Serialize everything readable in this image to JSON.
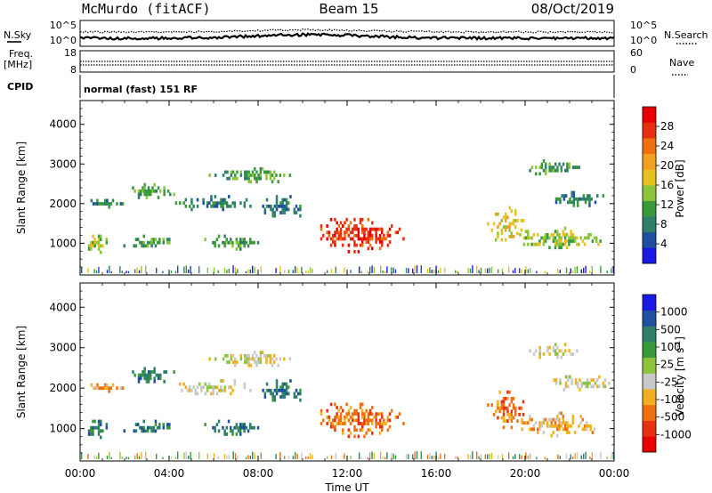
{
  "header": {
    "station": "McMurdo (fitACF)",
    "beam": "Beam 15",
    "date": "08/Oct/2019"
  },
  "sky_panel": {
    "left_label": "N.Sky",
    "right_label": "N.Search",
    "left_ticks": [
      "10^5",
      "10^0"
    ],
    "right_ticks": [
      "10^5",
      "10^0"
    ]
  },
  "freq_panel": {
    "left_label_1": "Freq.",
    "left_label_2": "[MHz]",
    "left_ticks": [
      "18",
      "8"
    ],
    "right_label": "Nave",
    "right_ticks": [
      "60",
      "0"
    ]
  },
  "cpid": {
    "label": "CPID",
    "text": "normal (fast) 151 RF"
  },
  "chart_data": [
    {
      "type": "heatmap",
      "panel": "power",
      "ylabel": "Slant Range [km]",
      "yticks": [
        1000,
        2000,
        3000,
        4000
      ],
      "ylim": [
        200,
        4600
      ],
      "xlim": [
        0,
        24
      ],
      "colorbar": {
        "label": "Power [dB]",
        "ticks": [
          "4",
          "8",
          "12",
          "16",
          "20",
          "24",
          "28"
        ],
        "colors": [
          "#1a1ae6",
          "#1e4fa0",
          "#2f7f6a",
          "#3a9a3a",
          "#8cc43c",
          "#e8c020",
          "#f2a020",
          "#f07010",
          "#e83010",
          "#e80000"
        ]
      },
      "echo_regions": [
        {
          "t0": 0.0,
          "t1": 1.4,
          "r0": 700,
          "r1": 1300,
          "level": 4
        },
        {
          "t0": 0.2,
          "t1": 2.0,
          "r0": 1900,
          "r1": 2200,
          "level": 2
        },
        {
          "t0": 1.5,
          "t1": 4.6,
          "r0": 850,
          "r1": 1300,
          "level": 3
        },
        {
          "t0": 1.8,
          "t1": 4.7,
          "r0": 2100,
          "r1": 2600,
          "level": 3
        },
        {
          "t0": 4.0,
          "t1": 8.0,
          "r0": 1800,
          "r1": 2300,
          "level": 2
        },
        {
          "t0": 5.4,
          "t1": 8.2,
          "r0": 800,
          "r1": 1300,
          "level": 3
        },
        {
          "t0": 5.6,
          "t1": 9.8,
          "r0": 2500,
          "r1": 3000,
          "level": 3
        },
        {
          "t0": 8.0,
          "t1": 10.2,
          "r0": 1600,
          "r1": 2300,
          "level": 2
        },
        {
          "t0": 10.0,
          "t1": 14.8,
          "r0": 700,
          "r1": 1800,
          "level": 8
        },
        {
          "t0": 18.2,
          "t1": 20.0,
          "r0": 900,
          "r1": 2100,
          "level": 5
        },
        {
          "t0": 19.2,
          "t1": 23.6,
          "r0": 800,
          "r1": 1500,
          "level": 4
        },
        {
          "t0": 20.0,
          "t1": 22.6,
          "r0": 2700,
          "r1": 3200,
          "level": 3
        },
        {
          "t0": 21.0,
          "t1": 24.0,
          "r0": 1900,
          "r1": 2400,
          "level": 2
        }
      ]
    },
    {
      "type": "heatmap",
      "panel": "velocity",
      "xlabel": "Time UT",
      "ylabel": "Slant Range [km]",
      "yticks": [
        1000,
        2000,
        3000,
        4000
      ],
      "ylim": [
        200,
        4600
      ],
      "xlim": [
        0,
        24
      ],
      "xticks": [
        "00:00",
        "04:00",
        "08:00",
        "12:00",
        "16:00",
        "20:00",
        "00:00"
      ],
      "colorbar": {
        "label": "Velocity [m s",
        "label_exp": "-1",
        "label_close": "]",
        "ticks": [
          "1000",
          "500",
          "100",
          "25",
          "-25",
          "-100",
          "-500",
          "-1000"
        ],
        "colors": [
          "#1a1ae6",
          "#1e4fa0",
          "#2f7f6a",
          "#3a9a3a",
          "#8cc43c",
          "#c8c8c8",
          "#f2b020",
          "#f07010",
          "#e83010",
          "#e80000"
        ]
      },
      "echo_regions": [
        {
          "t0": 0.0,
          "t1": 1.4,
          "r0": 700,
          "r1": 1300,
          "level": 2
        },
        {
          "t0": 0.2,
          "t1": 2.0,
          "r0": 1900,
          "r1": 2200,
          "level": 6
        },
        {
          "t0": 1.5,
          "t1": 4.6,
          "r0": 850,
          "r1": 1300,
          "level": 2
        },
        {
          "t0": 1.8,
          "t1": 4.7,
          "r0": 2100,
          "r1": 2600,
          "level": 2
        },
        {
          "t0": 4.0,
          "t1": 8.0,
          "r0": 1800,
          "r1": 2300,
          "level": 5
        },
        {
          "t0": 5.4,
          "t1": 8.2,
          "r0": 800,
          "r1": 1300,
          "level": 2
        },
        {
          "t0": 5.6,
          "t1": 9.8,
          "r0": 2500,
          "r1": 3000,
          "level": 5
        },
        {
          "t0": 8.0,
          "t1": 10.2,
          "r0": 1600,
          "r1": 2300,
          "level": 2
        },
        {
          "t0": 10.0,
          "t1": 14.8,
          "r0": 700,
          "r1": 1800,
          "level": 7
        },
        {
          "t0": 18.2,
          "t1": 20.0,
          "r0": 900,
          "r1": 2100,
          "level": 7
        },
        {
          "t0": 19.2,
          "t1": 23.6,
          "r0": 800,
          "r1": 1500,
          "level": 6
        },
        {
          "t0": 20.0,
          "t1": 22.6,
          "r0": 2700,
          "r1": 3200,
          "level": 5
        },
        {
          "t0": 21.0,
          "t1": 24.0,
          "r0": 1900,
          "r1": 2400,
          "level": 5
        }
      ]
    }
  ]
}
